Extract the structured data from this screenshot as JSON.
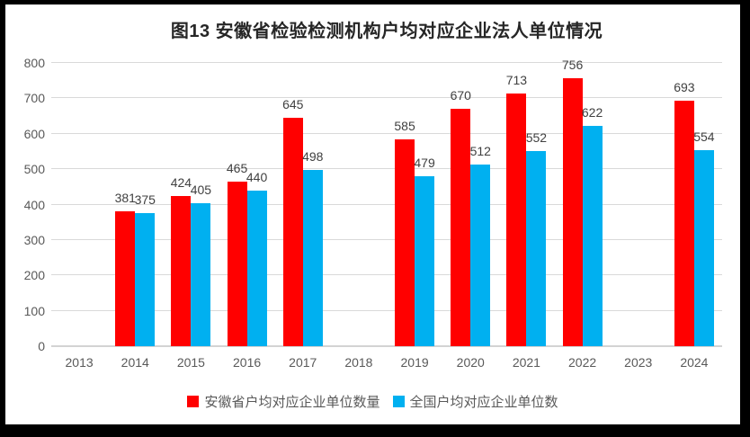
{
  "frame": {
    "background": "#000000",
    "chart_background": "#FFFFFF"
  },
  "chart_data": {
    "type": "bar",
    "title": "图13 安徽省检验检测机构户均对应企业法人单位情况",
    "categories": [
      "2013",
      "2014",
      "2015",
      "2016",
      "2017",
      "2018",
      "2019",
      "2020",
      "2021",
      "2022",
      "2023",
      "2024"
    ],
    "series": [
      {
        "key": "anhui",
        "name": "安徽省户均对应企业单位数量",
        "color": "#FF0000",
        "values": [
          null,
          381,
          424,
          465,
          645,
          null,
          585,
          670,
          713,
          756,
          null,
          693
        ]
      },
      {
        "key": "national",
        "name": "全国户均对应企业单位数",
        "color": "#00B0F0",
        "values": [
          null,
          375,
          405,
          440,
          498,
          null,
          479,
          512,
          552,
          622,
          null,
          554
        ]
      }
    ],
    "ylim": [
      0,
      800
    ],
    "ytick_interval": 100,
    "grid": true,
    "legend_position": "bottom",
    "colors": {
      "gridline": "#D9D9D9",
      "axis_line": "#D3D3D3",
      "axis_text": "#595959",
      "data_label": "#404040",
      "title_text": "#262626"
    }
  }
}
